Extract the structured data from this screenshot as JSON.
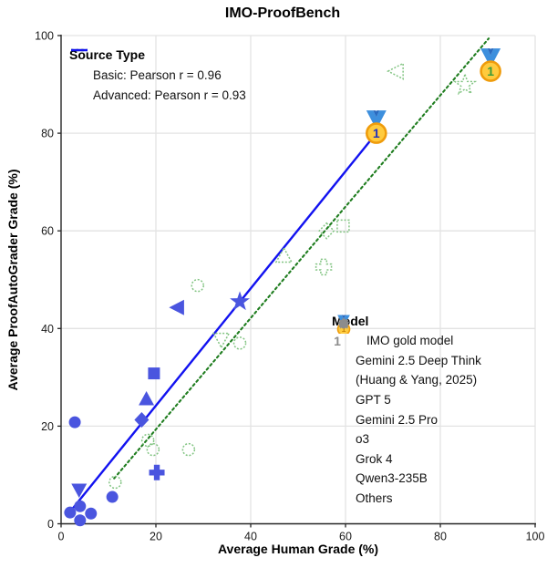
{
  "title": "IMO-ProofBench",
  "chart_data": {
    "type": "scatter",
    "title": "IMO-ProofBench",
    "xlabel": "Average Human Grade (%)",
    "ylabel": "Average ProofAutoGrader Grade (%)",
    "xlim": [
      0,
      100
    ],
    "ylim": [
      0,
      100
    ],
    "xticks": [
      0,
      20,
      40,
      60,
      80,
      100
    ],
    "yticks": [
      0,
      20,
      40,
      60,
      80,
      100
    ],
    "grid": true,
    "colors": {
      "advanced_marker": "#4a55df",
      "advanced_line": "#1212f0",
      "basic_marker": "#82c482",
      "basic_line": "#1f7d1f",
      "legend_marker_gray": "#8c8c8c",
      "grid": "#e3e3e3",
      "axis": "#262626",
      "medal_gold": "#FFCB3E",
      "medal_rim": "#EF9C0C",
      "medal_ribbon": "#3d8fdd",
      "medal_num_basic": "#3a9a3a",
      "medal_num_advanced": "#2233bb",
      "medal_num_legend": "#c8860a"
    },
    "series": [
      {
        "name": "Basic",
        "style": "outline-dotted",
        "points": [
          {
            "model": "IMO gold model",
            "marker": "medal",
            "x": 90.6,
            "y": 92.7
          },
          {
            "model": "Gemini 2.5 Deep Think",
            "marker": "star",
            "x": 85.2,
            "y": 89.9
          },
          {
            "model": "(Huang & Yang, 2025)",
            "marker": "tri-left",
            "x": 70.8,
            "y": 92.7
          },
          {
            "model": "GPT 5",
            "marker": "square",
            "x": 59.5,
            "y": 61.0
          },
          {
            "model": "Gemini 2.5 Pro",
            "marker": "diamond",
            "x": 56.0,
            "y": 60.0
          },
          {
            "model": "o3",
            "marker": "plus",
            "x": 55.4,
            "y": 52.6
          },
          {
            "model": "Grok 4",
            "marker": "tri-up",
            "x": 47.0,
            "y": 54.8
          },
          {
            "model": "Qwen3-235B",
            "marker": "tri-down",
            "x": 33.8,
            "y": 37.8
          },
          {
            "model": "Others",
            "marker": "circle",
            "x": 37.7,
            "y": 37.0
          },
          {
            "model": "Others",
            "marker": "circle",
            "x": 28.8,
            "y": 48.8
          },
          {
            "model": "Others",
            "marker": "circle",
            "x": 18.3,
            "y": 17.1
          },
          {
            "model": "Others",
            "marker": "circle",
            "x": 19.4,
            "y": 15.2
          },
          {
            "model": "Others",
            "marker": "circle",
            "x": 26.9,
            "y": 15.2
          },
          {
            "model": "Others",
            "marker": "circle",
            "x": 11.4,
            "y": 8.5
          }
        ]
      },
      {
        "name": "Advanced",
        "style": "filled",
        "points": [
          {
            "model": "IMO gold model",
            "marker": "medal",
            "x": 66.5,
            "y": 80.0
          },
          {
            "model": "Gemini 2.5 Deep Think",
            "marker": "star",
            "x": 37.7,
            "y": 45.5
          },
          {
            "model": "(Huang & Yang, 2025)",
            "marker": "tri-left",
            "x": 24.6,
            "y": 44.3
          },
          {
            "model": "GPT 5",
            "marker": "square",
            "x": 19.6,
            "y": 30.8
          },
          {
            "model": "Grok 4",
            "marker": "tri-up",
            "x": 18.0,
            "y": 25.5
          },
          {
            "model": "Gemini 2.5 Pro",
            "marker": "diamond",
            "x": 17.0,
            "y": 21.3
          },
          {
            "model": "o3",
            "marker": "plus",
            "x": 20.2,
            "y": 10.5
          },
          {
            "model": "Qwen3-235B",
            "marker": "tri-down",
            "x": 3.8,
            "y": 7.0
          },
          {
            "model": "Others",
            "marker": "circle",
            "x": 2.9,
            "y": 20.8
          },
          {
            "model": "Others",
            "marker": "circle",
            "x": 10.8,
            "y": 5.5
          },
          {
            "model": "Others",
            "marker": "circle",
            "x": 4.0,
            "y": 3.6
          },
          {
            "model": "Others",
            "marker": "circle",
            "x": 1.9,
            "y": 2.3
          },
          {
            "model": "Others",
            "marker": "circle",
            "x": 6.3,
            "y": 2.1
          },
          {
            "model": "Others",
            "marker": "circle",
            "x": 4.0,
            "y": 0.7
          }
        ]
      }
    ],
    "fit_lines": [
      {
        "name": "Basic",
        "style": "dotted",
        "x1": 11.2,
        "y1": 9.3,
        "x2": 90.2,
        "y2": 99.4
      },
      {
        "name": "Advanced",
        "style": "solid",
        "x1": 2.0,
        "y1": 2.6,
        "x2": 66.5,
        "y2": 80.0
      }
    ],
    "legend_source": {
      "title": "Source Type",
      "items": [
        {
          "label": "Basic: Pearson r = 0.96",
          "line": "dotted",
          "series": "Basic"
        },
        {
          "label": "Advanced: Pearson r = 0.93",
          "line": "solid",
          "series": "Advanced"
        }
      ]
    },
    "legend_model": {
      "title": "Model",
      "items": [
        {
          "marker": "medal",
          "prefix": "1",
          "label": "IMO gold model"
        },
        {
          "marker": "star",
          "label": "Gemini 2.5 Deep Think"
        },
        {
          "marker": "tri-left",
          "label": "(Huang & Yang, 2025)"
        },
        {
          "marker": "square",
          "label": "GPT 5"
        },
        {
          "marker": "diamond",
          "label": "Gemini 2.5 Pro"
        },
        {
          "marker": "plus",
          "label": "o3"
        },
        {
          "marker": "tri-up",
          "label": "Grok 4"
        },
        {
          "marker": "tri-down",
          "label": "Qwen3-235B"
        },
        {
          "marker": "circle",
          "label": "Others"
        }
      ]
    }
  }
}
